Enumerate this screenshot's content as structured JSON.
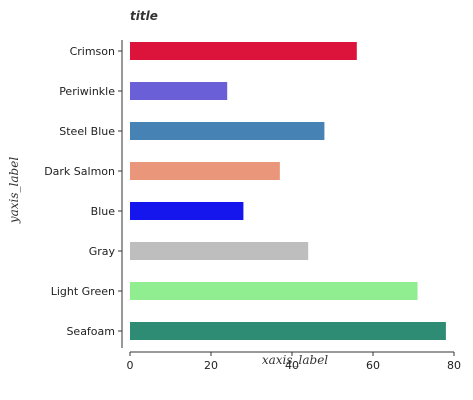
{
  "chart_data": {
    "type": "bar",
    "orientation": "horizontal",
    "title": "title",
    "xlabel": "xaxis_label",
    "ylabel": "yaxis_label",
    "categories": [
      "Seafoam",
      "Light Green",
      "Gray",
      "Blue",
      "Dark Salmon",
      "Steel Blue",
      "Periwinkle",
      "Crimson"
    ],
    "values": [
      78,
      71,
      44,
      28,
      37,
      48,
      24,
      56
    ],
    "colors": [
      "#2e8b74",
      "#90ee90",
      "#bebebe",
      "#1515ee",
      "#e9967a",
      "#4682b4",
      "#6b5fd8",
      "#dc143c"
    ],
    "xlim": [
      0,
      80
    ],
    "xticks": [
      "0",
      "20",
      "40",
      "60",
      "80"
    ],
    "grid": false,
    "legend": "none"
  }
}
